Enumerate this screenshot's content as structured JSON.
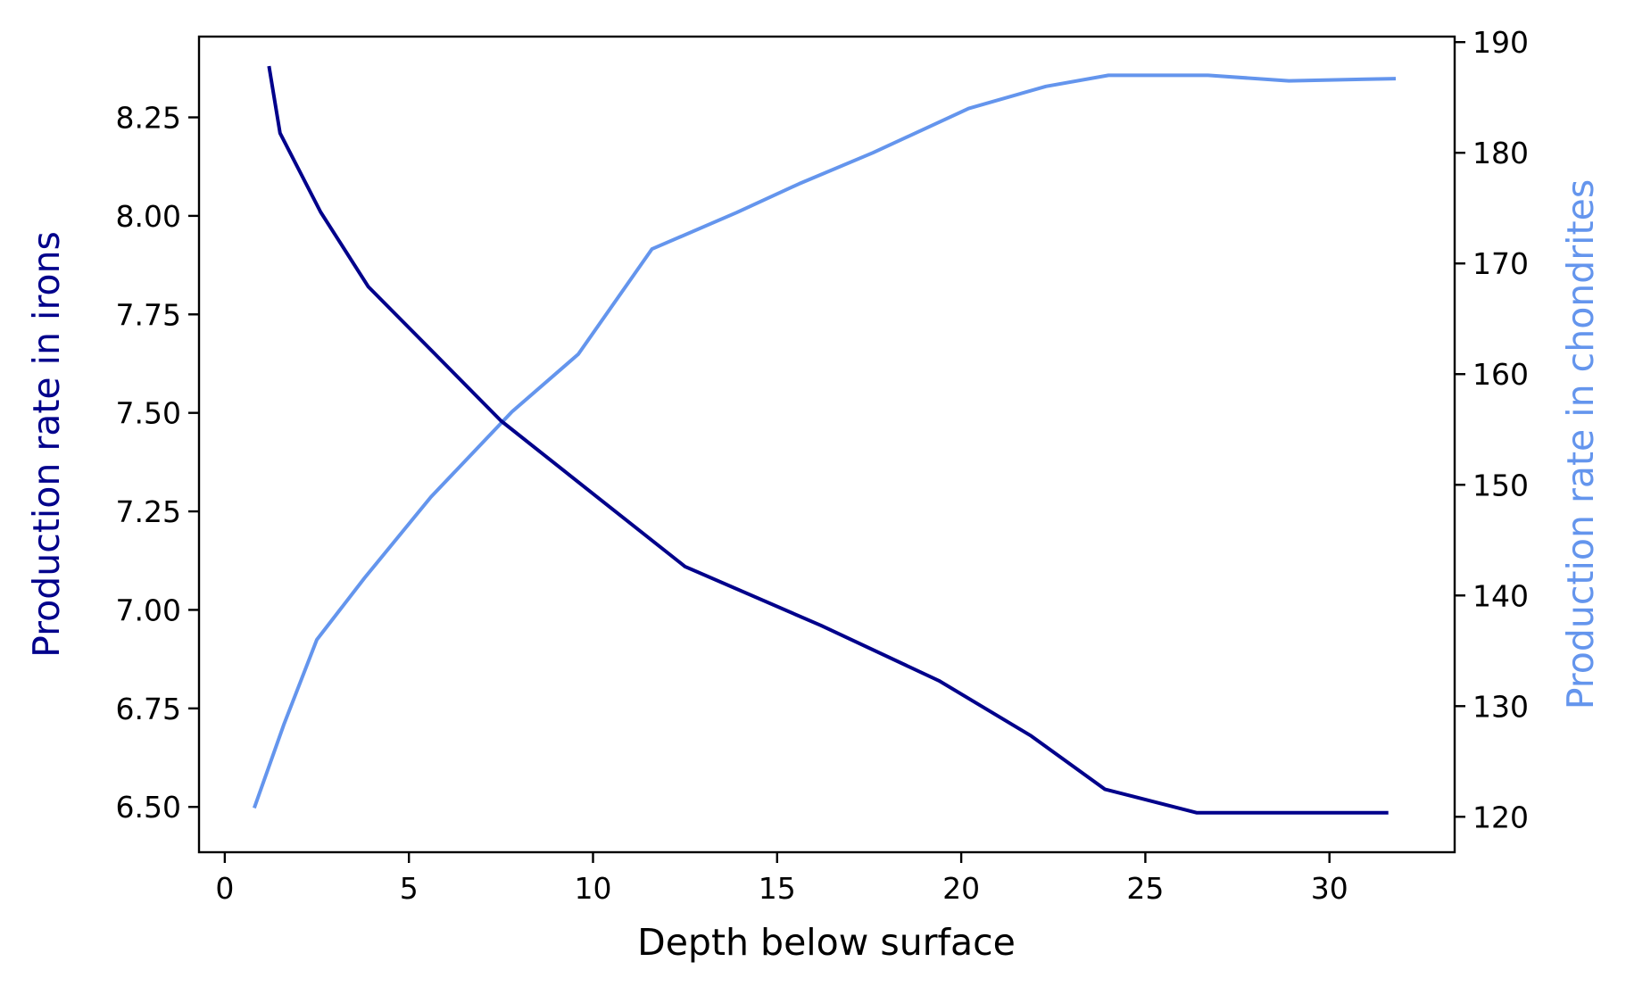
{
  "chart_data": {
    "type": "line",
    "title": "",
    "xlabel": "Depth below surface",
    "ylabel_left": "Production rate in irons",
    "ylabel_right": "Production rate in chondrites",
    "xlim": [
      -0.7,
      33.4
    ],
    "ylim_left": [
      6.385,
      8.455
    ],
    "ylim_right": [
      116.8,
      190.5
    ],
    "xticks": [
      0,
      5,
      10,
      15,
      20,
      25,
      30
    ],
    "yticks_left": [
      6.5,
      6.75,
      7.0,
      7.25,
      7.5,
      7.75,
      8.0,
      8.25
    ],
    "yticks_right": [
      120,
      130,
      140,
      150,
      160,
      170,
      180,
      190
    ],
    "grid": false,
    "legend": "none",
    "series": [
      {
        "name": "irons",
        "axis": "left",
        "color": "#00008b",
        "x": [
          1.2,
          1.5,
          2.6,
          3.9,
          5.7,
          7.5,
          10.2,
          12.5,
          16.2,
          19.4,
          21.9,
          23.9,
          26.4,
          31.6
        ],
        "y": [
          8.38,
          8.21,
          8.01,
          7.82,
          7.65,
          7.48,
          7.28,
          7.11,
          6.96,
          6.82,
          6.68,
          6.545,
          6.485,
          6.485
        ]
      },
      {
        "name": "chondrites",
        "axis": "right",
        "color": "#6495ed",
        "x": [
          0.8,
          1.6,
          2.5,
          3.8,
          5.6,
          7.8,
          9.6,
          11.6,
          13.9,
          15.6,
          17.6,
          20.2,
          22.3,
          24.0,
          26.7,
          28.9,
          31.8
        ],
        "y": [
          120.8,
          128.3,
          136.0,
          141.6,
          148.9,
          156.6,
          161.8,
          171.3,
          174.6,
          177.2,
          180.0,
          184.0,
          186.0,
          187.0,
          187.0,
          186.5,
          186.7
        ]
      }
    ]
  }
}
